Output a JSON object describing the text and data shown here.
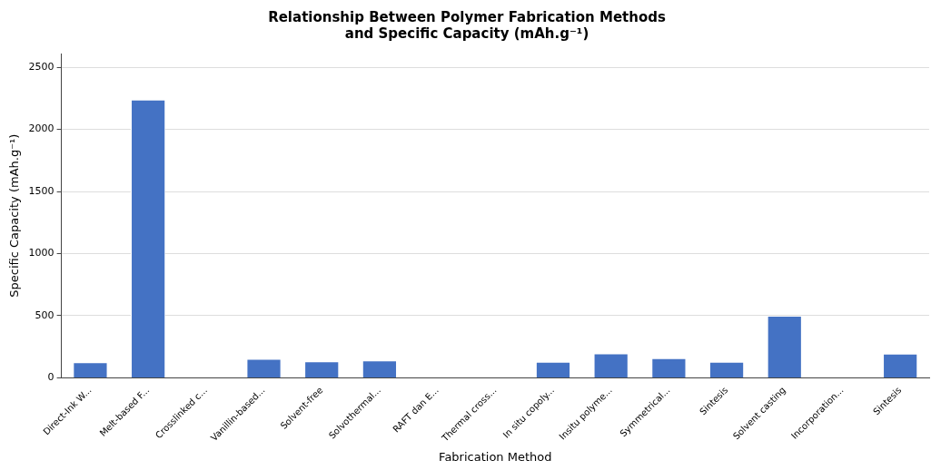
{
  "chart_data": {
    "type": "bar",
    "title": "Relationship Between Polymer Fabrication Methods\nand Specific Capacity (mAh.g⁻¹)",
    "xlabel": "Fabrication Method",
    "ylabel": "Specific Capacity (mAh.g⁻¹)",
    "categories": [
      "Direct-Ink W...",
      "Melt-based F...",
      "Crosslinked c...",
      "Vanillin-based...",
      "Solvent-free",
      "Solvothermal...",
      "RAFT dan E...",
      "Thermal cross...",
      "In situ copoly...",
      "Insitu polyme...",
      "Symmetrical...",
      "Sintesis",
      "Solvent casting",
      "Incorporation...",
      "Sintesis"
    ],
    "values": [
      126,
      2240,
      null,
      153,
      133,
      141,
      null,
      null,
      129,
      197,
      158,
      129,
      500,
      null,
      195
    ],
    "color": "#4472c4",
    "ylim": [
      0,
      2610
    ],
    "yticks": [
      0,
      500,
      1000,
      1500,
      2000,
      2500
    ],
    "grid": "y",
    "legend": false
  }
}
